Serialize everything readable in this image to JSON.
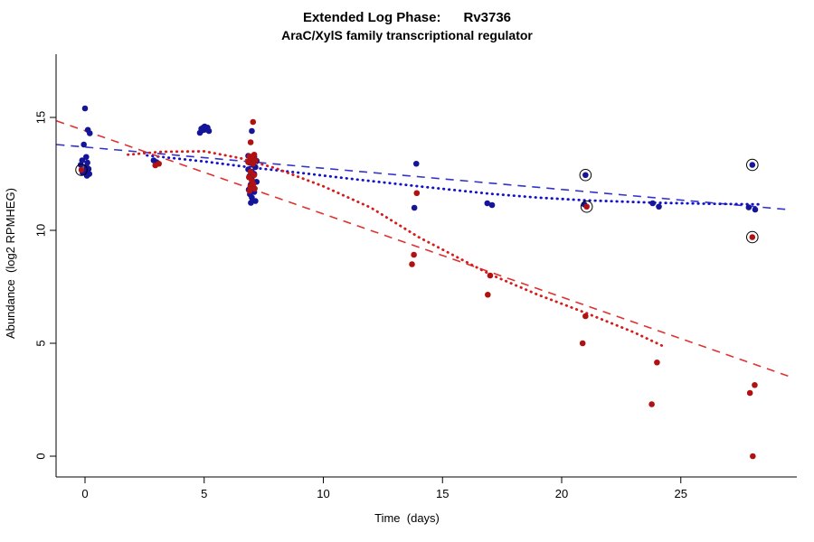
{
  "chart_data": {
    "type": "scatter",
    "title": "Extended Log Phase:      Rv3736",
    "subtitle": "AraC/XylS family transcriptional regulator",
    "xlabel": "Time  (days)",
    "ylabel": "Abundance  (log2 RPMHEG)",
    "xlim": [
      -1.5,
      29.5
    ],
    "ylim": [
      -0.6,
      16.4
    ],
    "xticks": [
      0,
      5,
      10,
      15,
      20,
      25
    ],
    "yticks": [
      0,
      5,
      10,
      15
    ],
    "grid": false,
    "legend": "none",
    "axis_color": "#000000",
    "circled_marker": {
      "color": "#000000",
      "radius": 6.3,
      "note": "third element 1 in a point marks a black open-circle overlay"
    },
    "series": [
      {
        "name": "blue-series",
        "color": "#151599",
        "points": [
          [
            0.0,
            15.4
          ],
          [
            0.12,
            14.45
          ],
          [
            0.2,
            14.3
          ],
          [
            -0.05,
            13.8
          ],
          [
            0.05,
            13.25
          ],
          [
            -0.12,
            13.1
          ],
          [
            0.1,
            13.0
          ],
          [
            -0.18,
            12.9
          ],
          [
            0.06,
            12.82
          ],
          [
            0.15,
            12.72
          ],
          [
            0.02,
            12.62
          ],
          [
            -0.1,
            12.55
          ],
          [
            0.18,
            12.5
          ],
          [
            0.08,
            12.42
          ],
          [
            2.88,
            13.1
          ],
          [
            3.0,
            13.02
          ],
          [
            4.82,
            14.32
          ],
          [
            4.9,
            14.42
          ],
          [
            4.96,
            14.55
          ],
          [
            5.02,
            14.6
          ],
          [
            5.08,
            14.5
          ],
          [
            5.14,
            14.55
          ],
          [
            5.2,
            14.4
          ],
          [
            5.0,
            14.45
          ],
          [
            4.88,
            14.5
          ],
          [
            7.0,
            14.4
          ],
          [
            6.85,
            13.3
          ],
          [
            7.1,
            13.25
          ],
          [
            6.95,
            13.15
          ],
          [
            7.2,
            13.08
          ],
          [
            6.9,
            13.0
          ],
          [
            7.05,
            12.9
          ],
          [
            7.15,
            12.8
          ],
          [
            6.85,
            12.7
          ],
          [
            7.0,
            12.6
          ],
          [
            7.1,
            12.5
          ],
          [
            6.9,
            12.4
          ],
          [
            7.0,
            12.25
          ],
          [
            7.2,
            12.15
          ],
          [
            6.95,
            12.02
          ],
          [
            7.05,
            11.9
          ],
          [
            6.87,
            11.8
          ],
          [
            7.1,
            11.7
          ],
          [
            6.92,
            11.6
          ],
          [
            7.0,
            11.45
          ],
          [
            7.15,
            11.3
          ],
          [
            6.96,
            11.22
          ],
          [
            13.9,
            12.95
          ],
          [
            13.82,
            11.0
          ],
          [
            16.88,
            11.2
          ],
          [
            17.08,
            11.12
          ],
          [
            21.0,
            12.45,
            1
          ],
          [
            20.95,
            11.15
          ],
          [
            23.82,
            11.2
          ],
          [
            24.08,
            11.05
          ],
          [
            28.0,
            12.9,
            1
          ],
          [
            27.85,
            11.02
          ],
          [
            28.12,
            10.92
          ]
        ]
      },
      {
        "name": "red-series",
        "color": "#b01212",
        "points": [
          [
            -0.15,
            12.68,
            1
          ],
          [
            3.1,
            12.95
          ],
          [
            2.95,
            12.88
          ],
          [
            7.05,
            14.8
          ],
          [
            6.95,
            13.9
          ],
          [
            7.1,
            13.35
          ],
          [
            6.9,
            13.28
          ],
          [
            7.0,
            13.2
          ],
          [
            7.15,
            13.1
          ],
          [
            6.85,
            13.02
          ],
          [
            7.05,
            12.95
          ],
          [
            6.95,
            12.6
          ],
          [
            7.1,
            12.45
          ],
          [
            6.88,
            12.35
          ],
          [
            7.0,
            12.2
          ],
          [
            7.06,
            12.05
          ],
          [
            6.94,
            11.95
          ],
          [
            7.12,
            11.85
          ],
          [
            6.9,
            11.75
          ],
          [
            13.92,
            11.65
          ],
          [
            13.8,
            8.92
          ],
          [
            13.72,
            8.5
          ],
          [
            17.0,
            8.0
          ],
          [
            16.9,
            7.15
          ],
          [
            21.05,
            11.05,
            1
          ],
          [
            21.0,
            6.2
          ],
          [
            20.88,
            5.0
          ],
          [
            24.0,
            4.15
          ],
          [
            23.78,
            2.3
          ],
          [
            28.0,
            9.7,
            1
          ],
          [
            28.1,
            3.15
          ],
          [
            27.9,
            2.8
          ],
          [
            28.02,
            0.0
          ]
        ]
      }
    ],
    "trend_lines": [
      {
        "name": "blue-linear-dashed",
        "color": "#3333cc",
        "dash": "dashed",
        "width": 1.6,
        "points": [
          [
            -1.2,
            13.8
          ],
          [
            29.5,
            10.92
          ]
        ]
      },
      {
        "name": "blue-smooth-dotted",
        "color": "#1111cc",
        "dash": "dotted",
        "width": 2.8,
        "points": [
          [
            2.6,
            13.32
          ],
          [
            5,
            13.05
          ],
          [
            7,
            12.78
          ],
          [
            9,
            12.55
          ],
          [
            11,
            12.3
          ],
          [
            14,
            11.95
          ],
          [
            17,
            11.62
          ],
          [
            19,
            11.45
          ],
          [
            21,
            11.33
          ],
          [
            24,
            11.22
          ],
          [
            26,
            11.18
          ],
          [
            28.4,
            11.15
          ]
        ]
      },
      {
        "name": "red-linear-dashed",
        "color": "#e03030",
        "dash": "dashed",
        "width": 1.6,
        "points": [
          [
            -1.2,
            14.85
          ],
          [
            29.5,
            3.55
          ]
        ]
      },
      {
        "name": "red-smooth-dotted",
        "color": "#d81a1a",
        "dash": "dotted",
        "width": 2.8,
        "points": [
          [
            1.8,
            13.35
          ],
          [
            3.2,
            13.48
          ],
          [
            5,
            13.5
          ],
          [
            6.5,
            13.2
          ],
          [
            8,
            12.75
          ],
          [
            10,
            11.95
          ],
          [
            12,
            11.0
          ],
          [
            14,
            9.7
          ],
          [
            16,
            8.6
          ],
          [
            17,
            8.05
          ],
          [
            19,
            7.15
          ],
          [
            21,
            6.35
          ],
          [
            23,
            5.5
          ],
          [
            24.3,
            4.85
          ]
        ]
      }
    ]
  }
}
